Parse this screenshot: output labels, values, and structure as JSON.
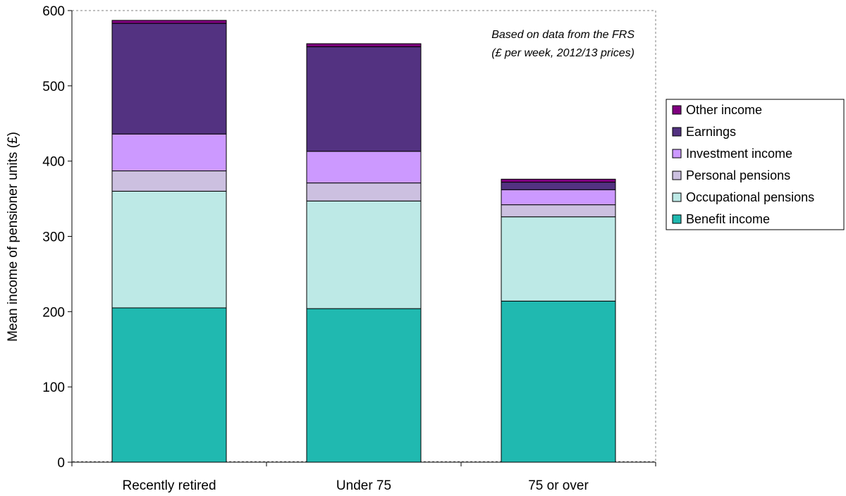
{
  "chart_data": {
    "type": "stacked-bar",
    "ylabel": "Mean income of pensioner units (£)",
    "ylim": [
      0,
      600
    ],
    "yticks": [
      0,
      100,
      200,
      300,
      400,
      500,
      600
    ],
    "categories": [
      "Recently retired",
      "Under 75",
      "75 or over"
    ],
    "annotation": [
      "Based on data from the FRS",
      "(£ per week, 2012/13 prices)"
    ],
    "legend_position": "right",
    "series": [
      {
        "name": "Benefit income",
        "color": "#20b9b0",
        "values": [
          205,
          204,
          214
        ]
      },
      {
        "name": "Occupational pensions",
        "color": "#bde9e6",
        "values": [
          155,
          143,
          112
        ]
      },
      {
        "name": "Personal pensions",
        "color": "#ccc0e0",
        "values": [
          27,
          24,
          16
        ]
      },
      {
        "name": "Investment income",
        "color": "#cc99ff",
        "values": [
          49,
          42,
          20
        ]
      },
      {
        "name": "Earnings",
        "color": "#533281",
        "values": [
          147,
          139,
          10
        ]
      },
      {
        "name": "Other income",
        "color": "#800080",
        "values": [
          4,
          4,
          4
        ]
      }
    ]
  }
}
